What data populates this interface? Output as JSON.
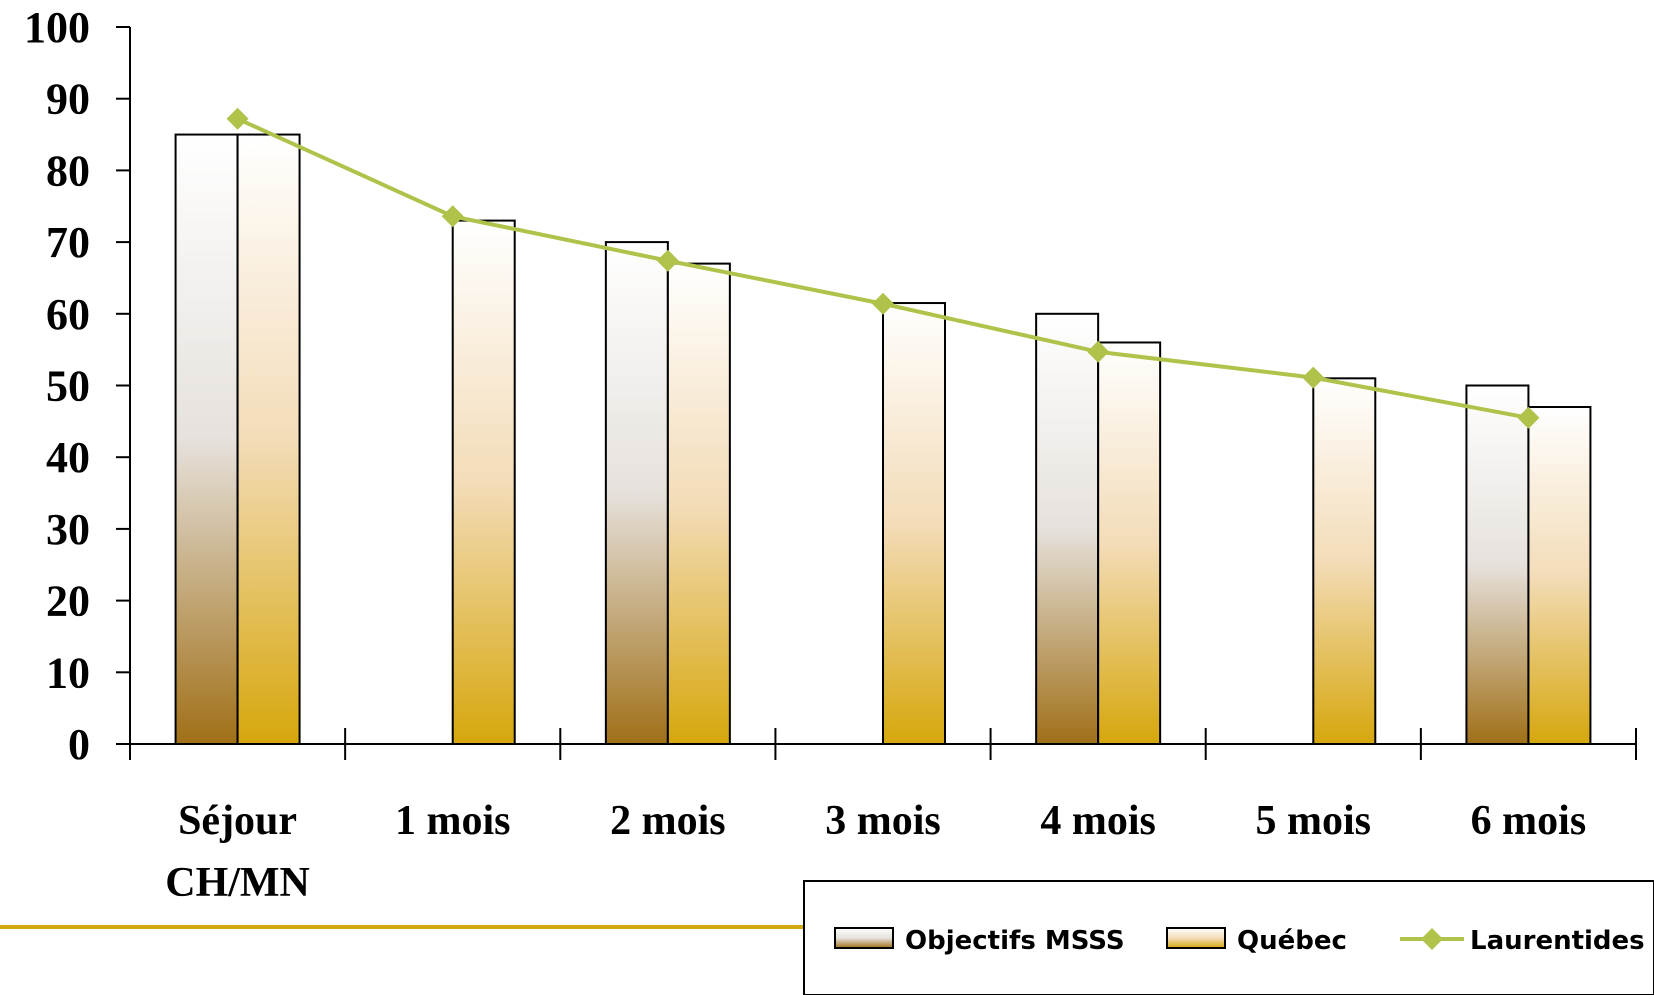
{
  "chart_data": {
    "type": "bar",
    "categories": [
      "Séjour CH/MN",
      "1 mois",
      "2 mois",
      "3 mois",
      "4 mois",
      "5 mois",
      "6 mois"
    ],
    "category_lines": [
      [
        "Séjour",
        "CH/MN"
      ],
      [
        "1 mois"
      ],
      [
        "2 mois"
      ],
      [
        "3 mois"
      ],
      [
        "4 mois"
      ],
      [
        "5 mois"
      ],
      [
        "6 mois"
      ]
    ],
    "series": [
      {
        "name": "Objectifs MSSS",
        "kind": "bar",
        "values": [
          85,
          null,
          70,
          null,
          60,
          null,
          50
        ],
        "color_top": "#ffffff",
        "color_mid": "#e6e1dc",
        "color_bottom": "#a07018"
      },
      {
        "name": "Québec",
        "kind": "bar",
        "values": [
          85,
          73,
          67,
          61.5,
          56,
          51,
          47
        ],
        "color_top": "#ffffff",
        "color_mid": "#f3dcb8",
        "color_bottom": "#d6a70c"
      },
      {
        "name": "Laurentides",
        "kind": "line",
        "values": [
          87.2,
          73.6,
          67.4,
          61.4,
          54.7,
          51.1,
          45.5
        ],
        "color": "#b0c24a"
      }
    ],
    "yticks": [
      0,
      10,
      20,
      30,
      40,
      50,
      60,
      70,
      80,
      90,
      100
    ],
    "ylim": [
      0,
      100
    ],
    "title": "",
    "xlabel": "",
    "ylabel": "",
    "grid": false,
    "legend_position": "bottom-right",
    "accent_rule_color": "#d4a90c"
  }
}
